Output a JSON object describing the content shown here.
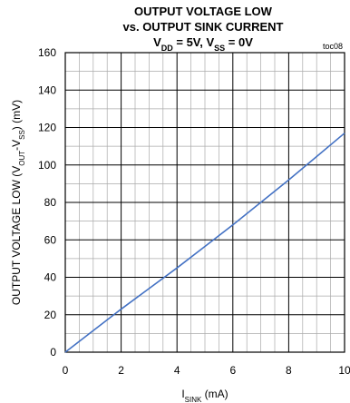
{
  "chart_data": {
    "type": "line",
    "title_lines": [
      "OUTPUT VOLTAGE LOW",
      "vs. OUTPUT SINK CURRENT"
    ],
    "subtitle_parts": [
      "V",
      "DD",
      " = 5V, V",
      "SS",
      " = 0V"
    ],
    "annotation": "toc08",
    "xlabel_parts": [
      "I",
      "SINK",
      " (mA)"
    ],
    "ylabel_parts": [
      "OUTPUT VOLTAGE LOW (V",
      "OUT",
      "-V",
      "SS",
      ") (mV)"
    ],
    "x": [
      0,
      1,
      2,
      3,
      4,
      5,
      6,
      7,
      8,
      9,
      10
    ],
    "series": [
      {
        "color": "#4472c4",
        "values": [
          0,
          11.5,
          23,
          34,
          45,
          56.5,
          68,
          80,
          92,
          104.5,
          117
        ]
      }
    ],
    "xlim": [
      0,
      10
    ],
    "xticks": [
      0,
      2,
      4,
      6,
      8,
      10
    ],
    "xminorticks": [
      0.5,
      1,
      1.5,
      2.5,
      3,
      3.5,
      4.5,
      5,
      5.5,
      6.5,
      7,
      7.5,
      8.5,
      9,
      9.5
    ],
    "ylim": [
      0,
      160
    ],
    "yticks": [
      0,
      20,
      40,
      60,
      80,
      100,
      120,
      140,
      160
    ],
    "yminorticks": [
      10,
      30,
      50,
      70,
      90,
      110,
      130,
      150
    ],
    "grid": true
  }
}
